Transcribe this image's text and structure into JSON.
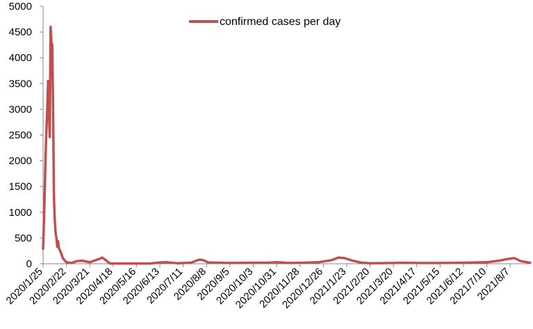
{
  "chart_data": {
    "type": "line",
    "title": "",
    "xlabel": "",
    "ylabel": "",
    "ylim": [
      0,
      5000
    ],
    "y_ticks": [
      0,
      500,
      1000,
      1500,
      2000,
      2500,
      3000,
      3500,
      4000,
      4500,
      5000
    ],
    "x_tick_labels": [
      "2020/1/25",
      "2020/2/22",
      "2020/3/21",
      "2020/4/18",
      "2020/5/16",
      "2020/6/13",
      "2020/7/11",
      "2020/8/8",
      "2020/9/5",
      "2020/10/3",
      "2020/10/31",
      "2020/11/28",
      "2020/12/26",
      "2021/1/23",
      "2021/2/20",
      "2021/3/20",
      "2021/4/17",
      "2021/5/15",
      "2021/6/12",
      "2021/7/10",
      "2021/8/7"
    ],
    "x_range": [
      "2020-01-25",
      "2021-08-31"
    ],
    "grid": false,
    "legend_position": "top-center",
    "series": [
      {
        "name": "confirmed cases per day",
        "color": "#C0504D",
        "points": [
          [
            "2020-01-25",
            290
          ],
          [
            "2020-01-26",
            800
          ],
          [
            "2020-01-27",
            1400
          ],
          [
            "2020-01-28",
            2100
          ],
          [
            "2020-01-29",
            2600
          ],
          [
            "2020-01-30",
            3000
          ],
          [
            "2020-01-31",
            3550
          ],
          [
            "2020-02-01",
            3000
          ],
          [
            "2020-02-02",
            2460
          ],
          [
            "2020-02-03",
            4600
          ],
          [
            "2020-02-04",
            4300
          ],
          [
            "2020-02-05",
            4250
          ],
          [
            "2020-02-06",
            3000
          ],
          [
            "2020-02-07",
            1300
          ],
          [
            "2020-02-08",
            850
          ],
          [
            "2020-02-09",
            600
          ],
          [
            "2020-02-10",
            500
          ],
          [
            "2020-02-11",
            330
          ],
          [
            "2020-02-12",
            440
          ],
          [
            "2020-02-13",
            300
          ],
          [
            "2020-02-15",
            230
          ],
          [
            "2020-02-18",
            100
          ],
          [
            "2020-02-22",
            30
          ],
          [
            "2020-02-28",
            15
          ],
          [
            "2020-03-05",
            50
          ],
          [
            "2020-03-12",
            60
          ],
          [
            "2020-03-21",
            30
          ],
          [
            "2020-03-28",
            70
          ],
          [
            "2020-04-01",
            90
          ],
          [
            "2020-04-05",
            120
          ],
          [
            "2020-04-10",
            60
          ],
          [
            "2020-04-14",
            5
          ],
          [
            "2020-05-01",
            5
          ],
          [
            "2020-06-01",
            5
          ],
          [
            "2020-06-13",
            25
          ],
          [
            "2020-06-20",
            30
          ],
          [
            "2020-07-05",
            10
          ],
          [
            "2020-07-11",
            15
          ],
          [
            "2020-07-20",
            20
          ],
          [
            "2020-07-30",
            80
          ],
          [
            "2020-08-04",
            70
          ],
          [
            "2020-08-10",
            25
          ],
          [
            "2020-09-05",
            15
          ],
          [
            "2020-10-03",
            20
          ],
          [
            "2020-10-20",
            20
          ],
          [
            "2020-10-31",
            30
          ],
          [
            "2020-11-15",
            15
          ],
          [
            "2020-12-01",
            20
          ],
          [
            "2020-12-20",
            30
          ],
          [
            "2021-01-05",
            70
          ],
          [
            "2021-01-13",
            120
          ],
          [
            "2021-01-20",
            110
          ],
          [
            "2021-01-30",
            60
          ],
          [
            "2021-02-10",
            20
          ],
          [
            "2021-02-20",
            10
          ],
          [
            "2021-03-20",
            15
          ],
          [
            "2021-04-01",
            20
          ],
          [
            "2021-04-17",
            15
          ],
          [
            "2021-05-15",
            15
          ],
          [
            "2021-06-12",
            20
          ],
          [
            "2021-07-10",
            30
          ],
          [
            "2021-07-25",
            60
          ],
          [
            "2021-08-03",
            90
          ],
          [
            "2021-08-07",
            100
          ],
          [
            "2021-08-12",
            110
          ],
          [
            "2021-08-20",
            50
          ],
          [
            "2021-08-31",
            20
          ]
        ]
      }
    ]
  }
}
